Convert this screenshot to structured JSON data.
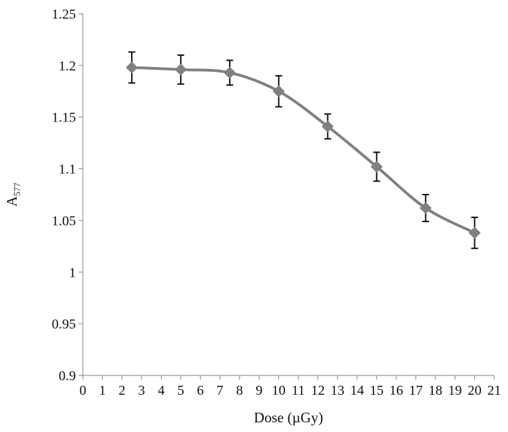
{
  "chart_data": {
    "type": "line",
    "title": "",
    "xlabel": "Dose (µGy)",
    "ylabel_main": "A",
    "ylabel_sub": "577",
    "xlim": [
      0,
      21
    ],
    "ylim": [
      0.9,
      1.25
    ],
    "x_ticks": [
      0,
      1,
      2,
      3,
      4,
      5,
      6,
      7,
      8,
      9,
      10,
      11,
      12,
      13,
      14,
      15,
      16,
      17,
      18,
      19,
      20,
      21
    ],
    "y_ticks": [
      0.9,
      0.95,
      1,
      1.05,
      1.1,
      1.15,
      1.2,
      1.25
    ],
    "y_tick_labels": [
      "0.9",
      "0.95",
      "1",
      "1.05",
      "1.1",
      "1.15",
      "1.2",
      "1.25"
    ],
    "grid": false,
    "smoothed": true,
    "series": [
      {
        "color": "#808080",
        "marker": "diamond",
        "x": [
          2.5,
          5,
          7.5,
          10,
          12.5,
          15,
          17.5,
          20
        ],
        "y": [
          1.198,
          1.196,
          1.193,
          1.175,
          1.141,
          1.102,
          1.062,
          1.038
        ],
        "error": [
          0.015,
          0.014,
          0.012,
          0.015,
          0.012,
          0.014,
          0.013,
          0.015
        ]
      }
    ]
  }
}
